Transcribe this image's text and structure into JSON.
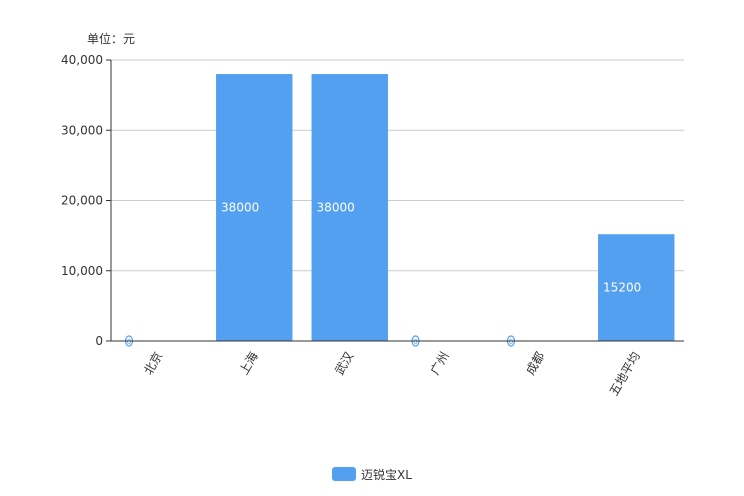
{
  "chart_data": {
    "type": "bar",
    "unit_label": "单位：元",
    "categories": [
      "北京",
      "上海",
      "武汉",
      "广州",
      "成都",
      "五地平均"
    ],
    "series": [
      {
        "name": "迈锐宝XL",
        "values": [
          0,
          38000,
          38000,
          0,
          0,
          15200
        ],
        "color": "#539ff0"
      }
    ],
    "ylim": [
      0,
      40000
    ],
    "yticks": [
      0,
      10000,
      20000,
      30000,
      40000
    ],
    "ytick_labels": [
      "0",
      "10,000",
      "20,000",
      "30,000",
      "40,000"
    ],
    "grid": true,
    "legend_position": "bottom",
    "data_labels": true
  }
}
